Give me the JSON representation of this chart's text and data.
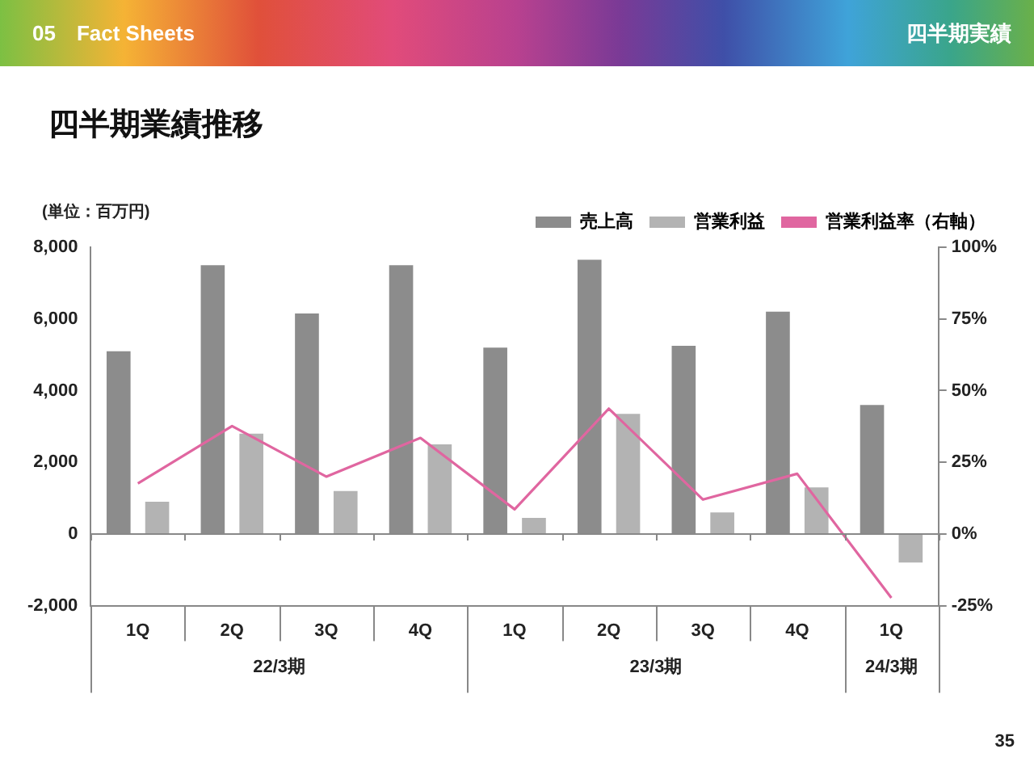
{
  "chart_data": {
    "type": "bar",
    "title": "四半期業績推移",
    "ylabel": "(単位：百万円)",
    "annotations": [
      "05　Fact Sheets",
      "四半期実績",
      "22/3期",
      "23/3期",
      "24/3期",
      "35"
    ],
    "categories": [
      "1Q",
      "2Q",
      "3Q",
      "4Q",
      "1Q",
      "2Q",
      "3Q",
      "4Q",
      "1Q"
    ],
    "series": [
      {
        "name": "売上高",
        "color": "#8c8c8c",
        "values": [
          5100,
          7500,
          6150,
          7500,
          5200,
          7650,
          5250,
          6200,
          3600
        ]
      },
      {
        "name": "営業利益",
        "color": "#b3b3b3",
        "values": [
          900,
          2800,
          1200,
          2500,
          450,
          3350,
          600,
          1300,
          -800
        ]
      },
      {
        "name": "営業利益率（右軸）",
        "type": "line",
        "axis": "y2",
        "color": "#e066a0",
        "values": [
          17.6,
          37.6,
          20,
          33.5,
          8.6,
          43.7,
          12,
          21,
          -22.3
        ]
      }
    ],
    "ylim": [
      -2000,
      8000
    ],
    "yticks": [
      {
        "value": -2000,
        "label": "-2,000"
      },
      {
        "value": 0,
        "label": "0"
      },
      {
        "value": 2000,
        "label": "2,000"
      },
      {
        "value": 4000,
        "label": "4,000"
      },
      {
        "value": 6000,
        "label": "6,000"
      },
      {
        "value": 8000,
        "label": "8,000"
      }
    ],
    "y2lim": [
      -25,
      100
    ],
    "y2ticks": [
      {
        "value": -25,
        "label": "-25%"
      },
      {
        "value": 0,
        "label": "0%"
      },
      {
        "value": 25,
        "label": "25%"
      },
      {
        "value": 50,
        "label": "50%"
      },
      {
        "value": 75,
        "label": "75%"
      },
      {
        "value": 100,
        "label": "100%"
      }
    ],
    "legend": "top right",
    "marker": "none"
  }
}
